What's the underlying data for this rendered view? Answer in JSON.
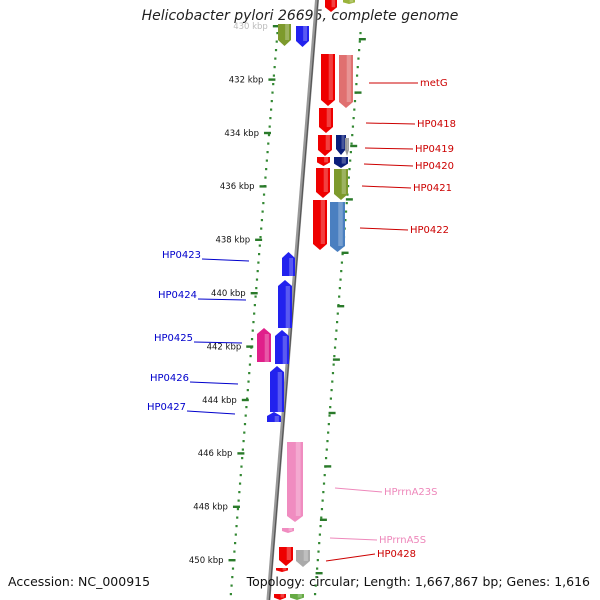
{
  "title": "Helicobacter pylori 26695, complete genome",
  "footer": {
    "accession": "Accession: NC_000915",
    "topology": "Topology: circular; Length: 1,667,867 bp; Genes: 1,616"
  },
  "ruler": {
    "ticks": [
      {
        "kbp": 430,
        "label": "430 kbp"
      },
      {
        "kbp": 432,
        "label": "432 kbp"
      },
      {
        "kbp": 434,
        "label": "434 kbp"
      },
      {
        "kbp": 436,
        "label": "436 kbp"
      },
      {
        "kbp": 438,
        "label": "438 kbp"
      },
      {
        "kbp": 440,
        "label": "440 kbp"
      },
      {
        "kbp": 442,
        "label": "442 kbp"
      },
      {
        "kbp": 444,
        "label": "444 kbp"
      },
      {
        "kbp": 446,
        "label": "446 kbp"
      },
      {
        "kbp": 448,
        "label": "448 kbp"
      },
      {
        "kbp": 450,
        "label": "450 kbp"
      }
    ]
  },
  "gene_labels": {
    "right": [
      {
        "name": "metG",
        "color": "#cc0000"
      },
      {
        "name": "HP0418",
        "color": "#cc0000"
      },
      {
        "name": "HP0419",
        "color": "#cc0000"
      },
      {
        "name": "HP0420",
        "color": "#cc0000"
      },
      {
        "name": "HP0421",
        "color": "#cc0000"
      },
      {
        "name": "HP0422",
        "color": "#cc0000"
      },
      {
        "name": "HPrrnA23S",
        "color": "#ee88bb"
      },
      {
        "name": "HPrrnA5S",
        "color": "#ee88bb"
      },
      {
        "name": "HP0428",
        "color": "#cc0000"
      }
    ],
    "left": [
      {
        "name": "HP0423",
        "color": "#0000cc"
      },
      {
        "name": "HP0424",
        "color": "#0000cc"
      },
      {
        "name": "HP0425",
        "color": "#0000cc"
      },
      {
        "name": "HP0426",
        "color": "#0000cc"
      },
      {
        "name": "HP0427",
        "color": "#0000cc"
      }
    ]
  },
  "colors": {
    "plus_strand_gene": "#ee0000",
    "minus_strand_gene": "#0000ee",
    "rrna": "#ee88bb",
    "backbone": "#888888",
    "ruler_dots": "#338833",
    "label_red": "#cc0000",
    "label_blue": "#0000cc",
    "label_pink": "#ee88bb"
  }
}
